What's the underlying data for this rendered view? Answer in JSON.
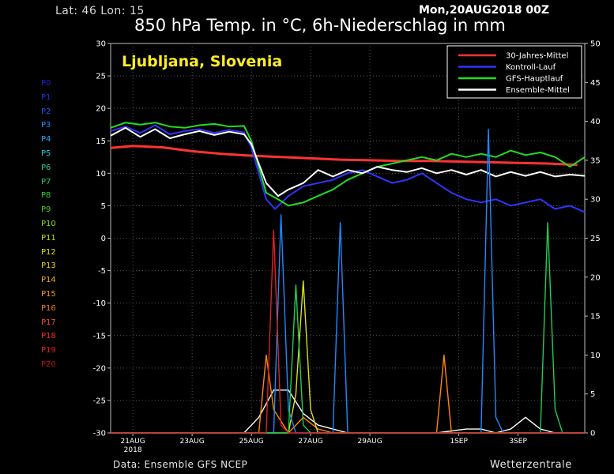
{
  "header": {
    "location": "Lat: 46 Lon: 15",
    "run": "Mon,20AUG2018 00Z",
    "title": "850 hPa Temp. in °C, 6h-Niederschlag in mm"
  },
  "footer": {
    "source": "Data: Ensemble GFS NCEP",
    "brand": "Wetterzentrale"
  },
  "members": [
    {
      "label": "P0",
      "color": "#2222cc"
    },
    {
      "label": "P1",
      "color": "#2233dd"
    },
    {
      "label": "P2",
      "color": "#2255ee"
    },
    {
      "label": "P3",
      "color": "#2288ff"
    },
    {
      "label": "P4",
      "color": "#22aaee"
    },
    {
      "label": "P5",
      "color": "#22ccdd"
    },
    {
      "label": "P6",
      "color": "#22cc99"
    },
    {
      "label": "P7",
      "color": "#22cc55"
    },
    {
      "label": "P8",
      "color": "#33cc33"
    },
    {
      "label": "P9",
      "color": "#55cc22"
    },
    {
      "label": "P10",
      "color": "#88dd22"
    },
    {
      "label": "P11",
      "color": "#bbdd22"
    },
    {
      "label": "P12",
      "color": "#dddd22"
    },
    {
      "label": "P13",
      "color": "#eecc22"
    },
    {
      "label": "P14",
      "color": "#eeaa22"
    },
    {
      "label": "P15",
      "color": "#ee9922"
    },
    {
      "label": "P16",
      "color": "#ee7722"
    },
    {
      "label": "P17",
      "color": "#ee5522"
    },
    {
      "label": "P18",
      "color": "#ee3322"
    },
    {
      "label": "P19",
      "color": "#dd2222"
    },
    {
      "label": "P20",
      "color": "#bb1111"
    }
  ],
  "chart_data": {
    "type": "line",
    "title": "850 hPa Temp. in °C, 6h-Niederschlag in mm",
    "location_label": "Ljubljana, Slovenia",
    "x_tick_labels": [
      "21AUG\n2018",
      "23AUG",
      "25AUG",
      "27AUG",
      "29AUG",
      "1SEP",
      "3SEP"
    ],
    "x_tick_days": [
      1,
      3,
      5,
      7,
      9,
      12,
      14
    ],
    "x_range_days": [
      0.25,
      16.25
    ],
    "y_left": {
      "label": "",
      "range": [
        -30,
        30
      ],
      "ticks": [
        -30,
        -25,
        -20,
        -15,
        -10,
        -5,
        0,
        5,
        10,
        15,
        20,
        25,
        30
      ]
    },
    "y_right": {
      "label": "",
      "range": [
        0,
        50
      ],
      "ticks": [
        0,
        5,
        10,
        15,
        20,
        25,
        30,
        35,
        40,
        45,
        50
      ]
    },
    "grid": true,
    "legend_position": "top-right",
    "series": [
      {
        "name": "30-Jahres-Mittel",
        "color": "#ff3333",
        "axis": "left",
        "points": [
          [
            0.25,
            13.9
          ],
          [
            1,
            14.2
          ],
          [
            2,
            14.0
          ],
          [
            3,
            13.4
          ],
          [
            4,
            13.0
          ],
          [
            5,
            12.7
          ],
          [
            6,
            12.5
          ],
          [
            7,
            12.3
          ],
          [
            8,
            12.1
          ],
          [
            9,
            12.0
          ],
          [
            10,
            11.9
          ],
          [
            11,
            11.9
          ],
          [
            12,
            11.8
          ],
          [
            13,
            11.7
          ],
          [
            14,
            11.6
          ],
          [
            15,
            11.5
          ],
          [
            16,
            11.3
          ]
        ]
      },
      {
        "name": "Kontroll-Lauf",
        "color": "#3333ff",
        "axis": "left",
        "points": [
          [
            0.25,
            16.5
          ],
          [
            0.75,
            17.2
          ],
          [
            1.25,
            16.2
          ],
          [
            1.75,
            17.4
          ],
          [
            2.25,
            16.0
          ],
          [
            2.75,
            16.5
          ],
          [
            3.25,
            16.8
          ],
          [
            3.75,
            16.2
          ],
          [
            4.25,
            16.7
          ],
          [
            4.75,
            16.3
          ],
          [
            5,
            14.0
          ],
          [
            5.5,
            6.0
          ],
          [
            5.8,
            4.5
          ],
          [
            6.25,
            6.5
          ],
          [
            6.75,
            8.0
          ],
          [
            7.25,
            8.5
          ],
          [
            7.75,
            9.0
          ],
          [
            8.25,
            10.0
          ],
          [
            8.75,
            10.5
          ],
          [
            9.25,
            9.5
          ],
          [
            9.75,
            8.5
          ],
          [
            10.25,
            9.0
          ],
          [
            10.75,
            10.0
          ],
          [
            11.25,
            8.5
          ],
          [
            11.75,
            7.0
          ],
          [
            12.25,
            6.0
          ],
          [
            12.75,
            5.5
          ],
          [
            13.25,
            6.0
          ],
          [
            13.75,
            5.0
          ],
          [
            14.25,
            5.5
          ],
          [
            14.75,
            6.0
          ],
          [
            15.25,
            4.5
          ],
          [
            15.75,
            5.0
          ],
          [
            16.25,
            4.0
          ]
        ]
      },
      {
        "name": "GFS-Hauptlauf",
        "color": "#22dd22",
        "axis": "left",
        "points": [
          [
            0.25,
            17.0
          ],
          [
            0.75,
            17.8
          ],
          [
            1.25,
            17.5
          ],
          [
            1.75,
            17.8
          ],
          [
            2.25,
            17.2
          ],
          [
            2.75,
            17.0
          ],
          [
            3.25,
            17.4
          ],
          [
            3.75,
            17.6
          ],
          [
            4.25,
            17.2
          ],
          [
            4.75,
            17.3
          ],
          [
            5,
            15.0
          ],
          [
            5.5,
            7.0
          ],
          [
            5.9,
            6.0
          ],
          [
            6.25,
            5.0
          ],
          [
            6.75,
            5.5
          ],
          [
            7.25,
            6.5
          ],
          [
            7.75,
            7.5
          ],
          [
            8.25,
            9.0
          ],
          [
            8.75,
            10.0
          ],
          [
            9.25,
            11.0
          ],
          [
            9.75,
            11.5
          ],
          [
            10.25,
            12.0
          ],
          [
            10.75,
            12.5
          ],
          [
            11.25,
            12.0
          ],
          [
            11.75,
            13.0
          ],
          [
            12.25,
            12.5
          ],
          [
            12.75,
            13.0
          ],
          [
            13.25,
            12.5
          ],
          [
            13.75,
            13.5
          ],
          [
            14.25,
            12.8
          ],
          [
            14.75,
            13.2
          ],
          [
            15.25,
            12.5
          ],
          [
            15.75,
            11.0
          ],
          [
            16.25,
            12.5
          ]
        ]
      },
      {
        "name": "Ensemble-Mittel",
        "color": "#ffffff",
        "axis": "left",
        "points": [
          [
            0.25,
            15.8
          ],
          [
            0.75,
            17.0
          ],
          [
            1.25,
            15.6
          ],
          [
            1.75,
            16.8
          ],
          [
            2.25,
            15.4
          ],
          [
            2.75,
            16.0
          ],
          [
            3.25,
            16.5
          ],
          [
            3.75,
            15.9
          ],
          [
            4.25,
            16.4
          ],
          [
            4.75,
            16.0
          ],
          [
            5,
            14.5
          ],
          [
            5.5,
            8.5
          ],
          [
            5.9,
            6.5
          ],
          [
            6.25,
            7.5
          ],
          [
            6.75,
            8.5
          ],
          [
            7.25,
            10.5
          ],
          [
            7.75,
            9.5
          ],
          [
            8.25,
            10.5
          ],
          [
            8.75,
            10.0
          ],
          [
            9.25,
            11.0
          ],
          [
            9.75,
            10.5
          ],
          [
            10.25,
            10.2
          ],
          [
            10.75,
            10.8
          ],
          [
            11.25,
            10.0
          ],
          [
            11.75,
            10.5
          ],
          [
            12.25,
            9.8
          ],
          [
            12.75,
            10.5
          ],
          [
            13.25,
            9.5
          ],
          [
            13.75,
            10.2
          ],
          [
            14.25,
            9.6
          ],
          [
            14.75,
            10.2
          ],
          [
            15.25,
            9.5
          ],
          [
            15.75,
            9.8
          ],
          [
            16.25,
            9.6
          ]
        ]
      },
      {
        "name": "",
        "color": "#ffffff",
        "axis": "right",
        "points": [
          [
            0.25,
            0
          ],
          [
            4.75,
            0
          ],
          [
            5.25,
            2.0
          ],
          [
            5.75,
            5.5
          ],
          [
            6.25,
            5.5
          ],
          [
            6.75,
            2.5
          ],
          [
            7.25,
            1.0
          ],
          [
            7.75,
            0.5
          ],
          [
            8.25,
            0
          ],
          [
            11.25,
            0
          ],
          [
            12.25,
            0.5
          ],
          [
            12.75,
            0.5
          ],
          [
            13.25,
            0
          ],
          [
            13.75,
            0.5
          ],
          [
            14.25,
            2.0
          ],
          [
            14.75,
            0.5
          ],
          [
            15.25,
            0
          ],
          [
            16.25,
            0
          ]
        ]
      },
      {
        "name": "",
        "color": "#ff8800",
        "axis": "right",
        "points": [
          [
            0.25,
            0
          ],
          [
            5.25,
            0
          ],
          [
            5.5,
            10.0
          ],
          [
            5.75,
            3.0
          ],
          [
            6.25,
            0
          ],
          [
            6.75,
            2.0
          ],
          [
            7.25,
            0.5
          ],
          [
            7.75,
            0
          ],
          [
            11.25,
            0
          ],
          [
            11.5,
            10.0
          ],
          [
            11.75,
            0
          ],
          [
            16.25,
            0
          ]
        ]
      },
      {
        "name": "",
        "color": "#dddd22",
        "axis": "right",
        "points": [
          [
            0.25,
            0
          ],
          [
            6.25,
            0
          ],
          [
            6.5,
            5.0
          ],
          [
            6.75,
            19.5
          ],
          [
            7.0,
            3.0
          ],
          [
            7.25,
            0
          ],
          [
            16.25,
            0
          ]
        ]
      },
      {
        "name": "",
        "color": "#2288ff",
        "axis": "right",
        "points": [
          [
            0.25,
            0
          ],
          [
            5.75,
            0
          ],
          [
            6.0,
            28.0
          ],
          [
            6.25,
            3.0
          ],
          [
            6.5,
            0
          ],
          [
            7.75,
            0
          ],
          [
            8.0,
            27.0
          ],
          [
            8.25,
            0
          ],
          [
            12.75,
            0
          ],
          [
            13.0,
            39.0
          ],
          [
            13.25,
            2.0
          ],
          [
            13.5,
            0
          ],
          [
            16.25,
            0
          ]
        ]
      },
      {
        "name": "",
        "color": "#22cc55",
        "axis": "right",
        "points": [
          [
            0.25,
            0
          ],
          [
            6.25,
            0
          ],
          [
            6.5,
            19.0
          ],
          [
            6.75,
            1.0
          ],
          [
            7.0,
            0
          ],
          [
            14.75,
            0
          ],
          [
            15.0,
            27.0
          ],
          [
            15.25,
            3.0
          ],
          [
            15.5,
            0
          ],
          [
            16.25,
            0
          ]
        ]
      },
      {
        "name": "",
        "color": "#dd2222",
        "axis": "right",
        "points": [
          [
            0.25,
            0
          ],
          [
            5.5,
            0
          ],
          [
            5.75,
            26.0
          ],
          [
            6.0,
            1.0
          ],
          [
            6.25,
            0
          ],
          [
            16.25,
            0
          ]
        ]
      }
    ]
  }
}
